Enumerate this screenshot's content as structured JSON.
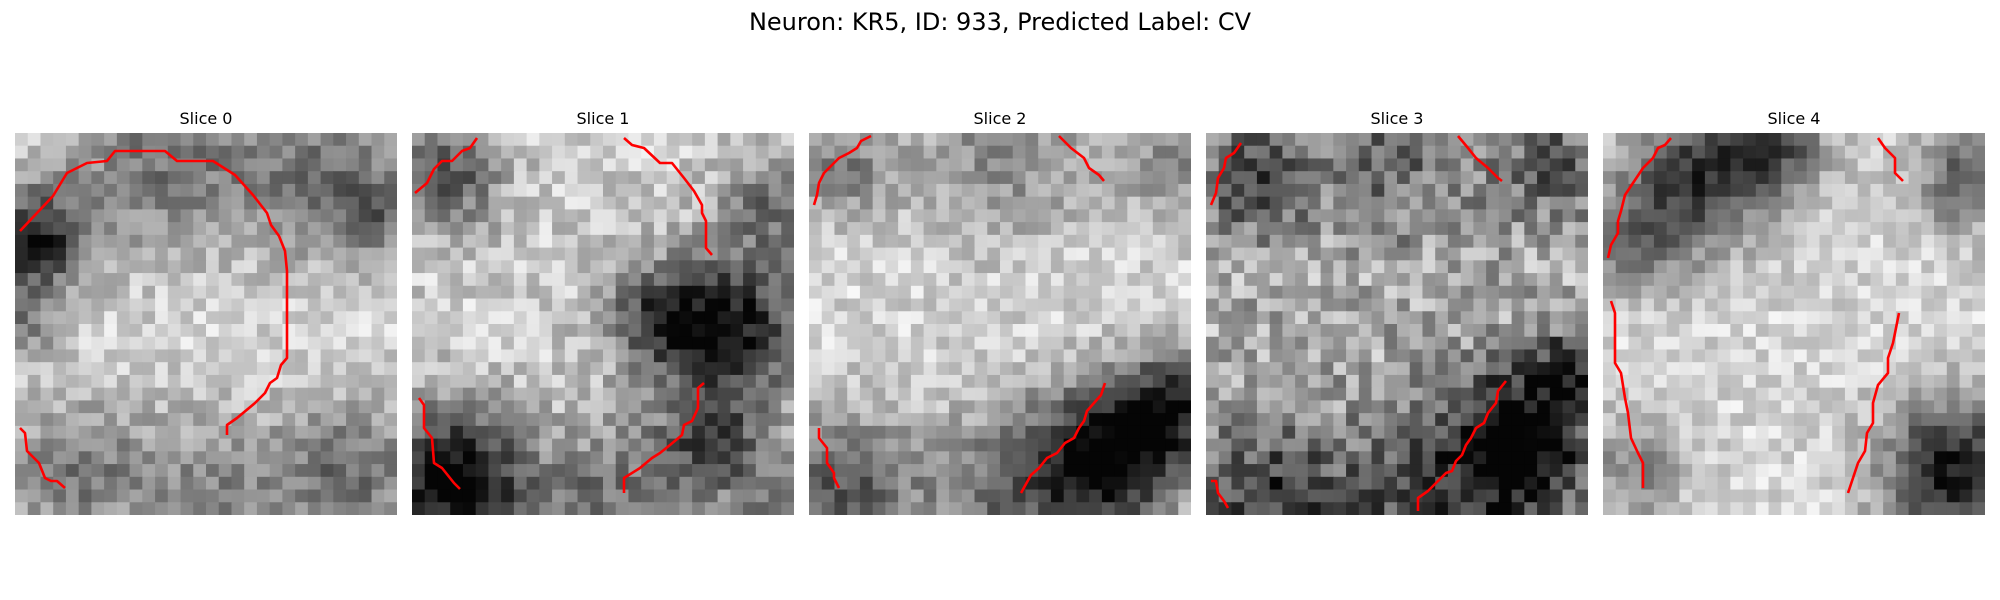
{
  "figure": {
    "title": "Neuron: KR5, ID: 933, Predicted Label: CV"
  },
  "slices": [
    {
      "label": "Slice 0",
      "contour_color": "#ff0000"
    },
    {
      "label": "Slice 1",
      "contour_color": "#ff0000"
    },
    {
      "label": "Slice 2",
      "contour_color": "#ff0000"
    },
    {
      "label": "Slice 3",
      "contour_color": "#ff0000"
    },
    {
      "label": "Slice 4",
      "contour_color": "#ff0000"
    }
  ]
}
